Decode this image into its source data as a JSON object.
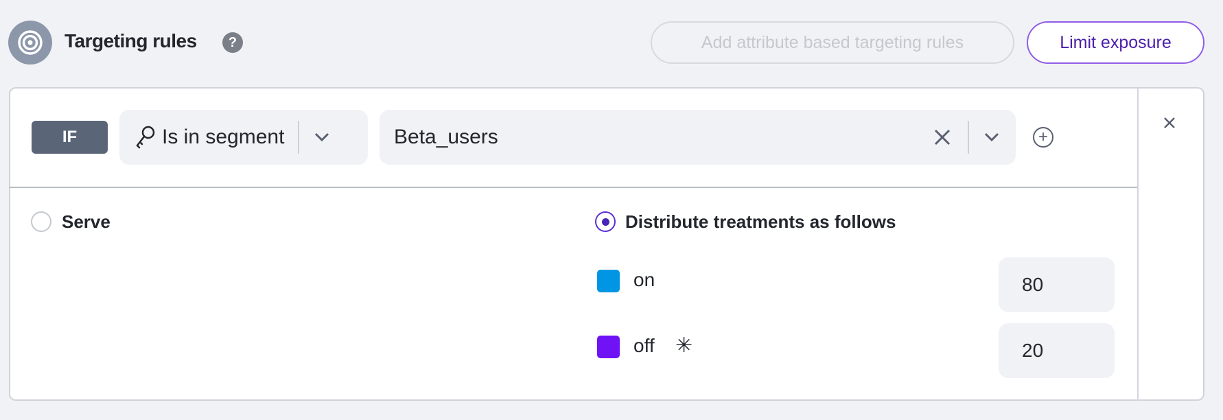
{
  "header": {
    "title": "Targeting rules",
    "help_icon": "?",
    "add_rules_label": "Add attribute based targeting rules",
    "limit_exposure_label": "Limit exposure"
  },
  "rule": {
    "if_label": "IF",
    "matcher": "Is in segment",
    "segment_value": "Beta_users"
  },
  "serve": {
    "label": "Serve",
    "selected": false
  },
  "distribute": {
    "label": "Distribute treatments as follows",
    "selected": true,
    "treatments": [
      {
        "name": "on",
        "value": "80",
        "color": "#0096e3"
      },
      {
        "name": "off",
        "value": "20",
        "color": "#6f12f5",
        "default_marker": "✳"
      }
    ]
  },
  "colors": {
    "accent": "#8f5de8",
    "if_badge": "#5a6578"
  }
}
